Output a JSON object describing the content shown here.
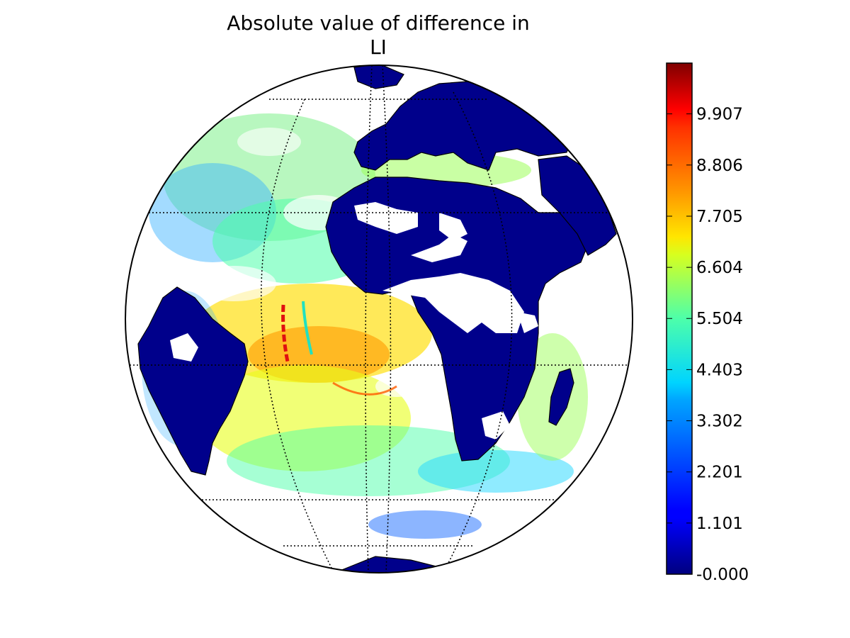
{
  "title_line1": "Absolute value of difference in",
  "title_line2": "LI",
  "colorbar": {
    "colormap": "jet",
    "vmin": -0.0,
    "vmax": 11.0,
    "tick_labels": [
      "-0.000",
      "1.101",
      "2.201",
      "3.302",
      "4.403",
      "5.504",
      "6.604",
      "7.705",
      "8.806",
      "9.907"
    ],
    "tick_values": [
      0.0,
      1.101,
      2.201,
      3.302,
      4.403,
      5.504,
      6.604,
      7.705,
      8.806,
      9.907
    ]
  },
  "map": {
    "projection": "orthographic",
    "graticule": "dotted",
    "land_color": "#00008b",
    "no_data_color": "#ffffff",
    "regions": [
      "Europe",
      "Africa",
      "South America",
      "Atlantic Ocean",
      "Mediterranean Sea",
      "Madagascar"
    ]
  }
}
